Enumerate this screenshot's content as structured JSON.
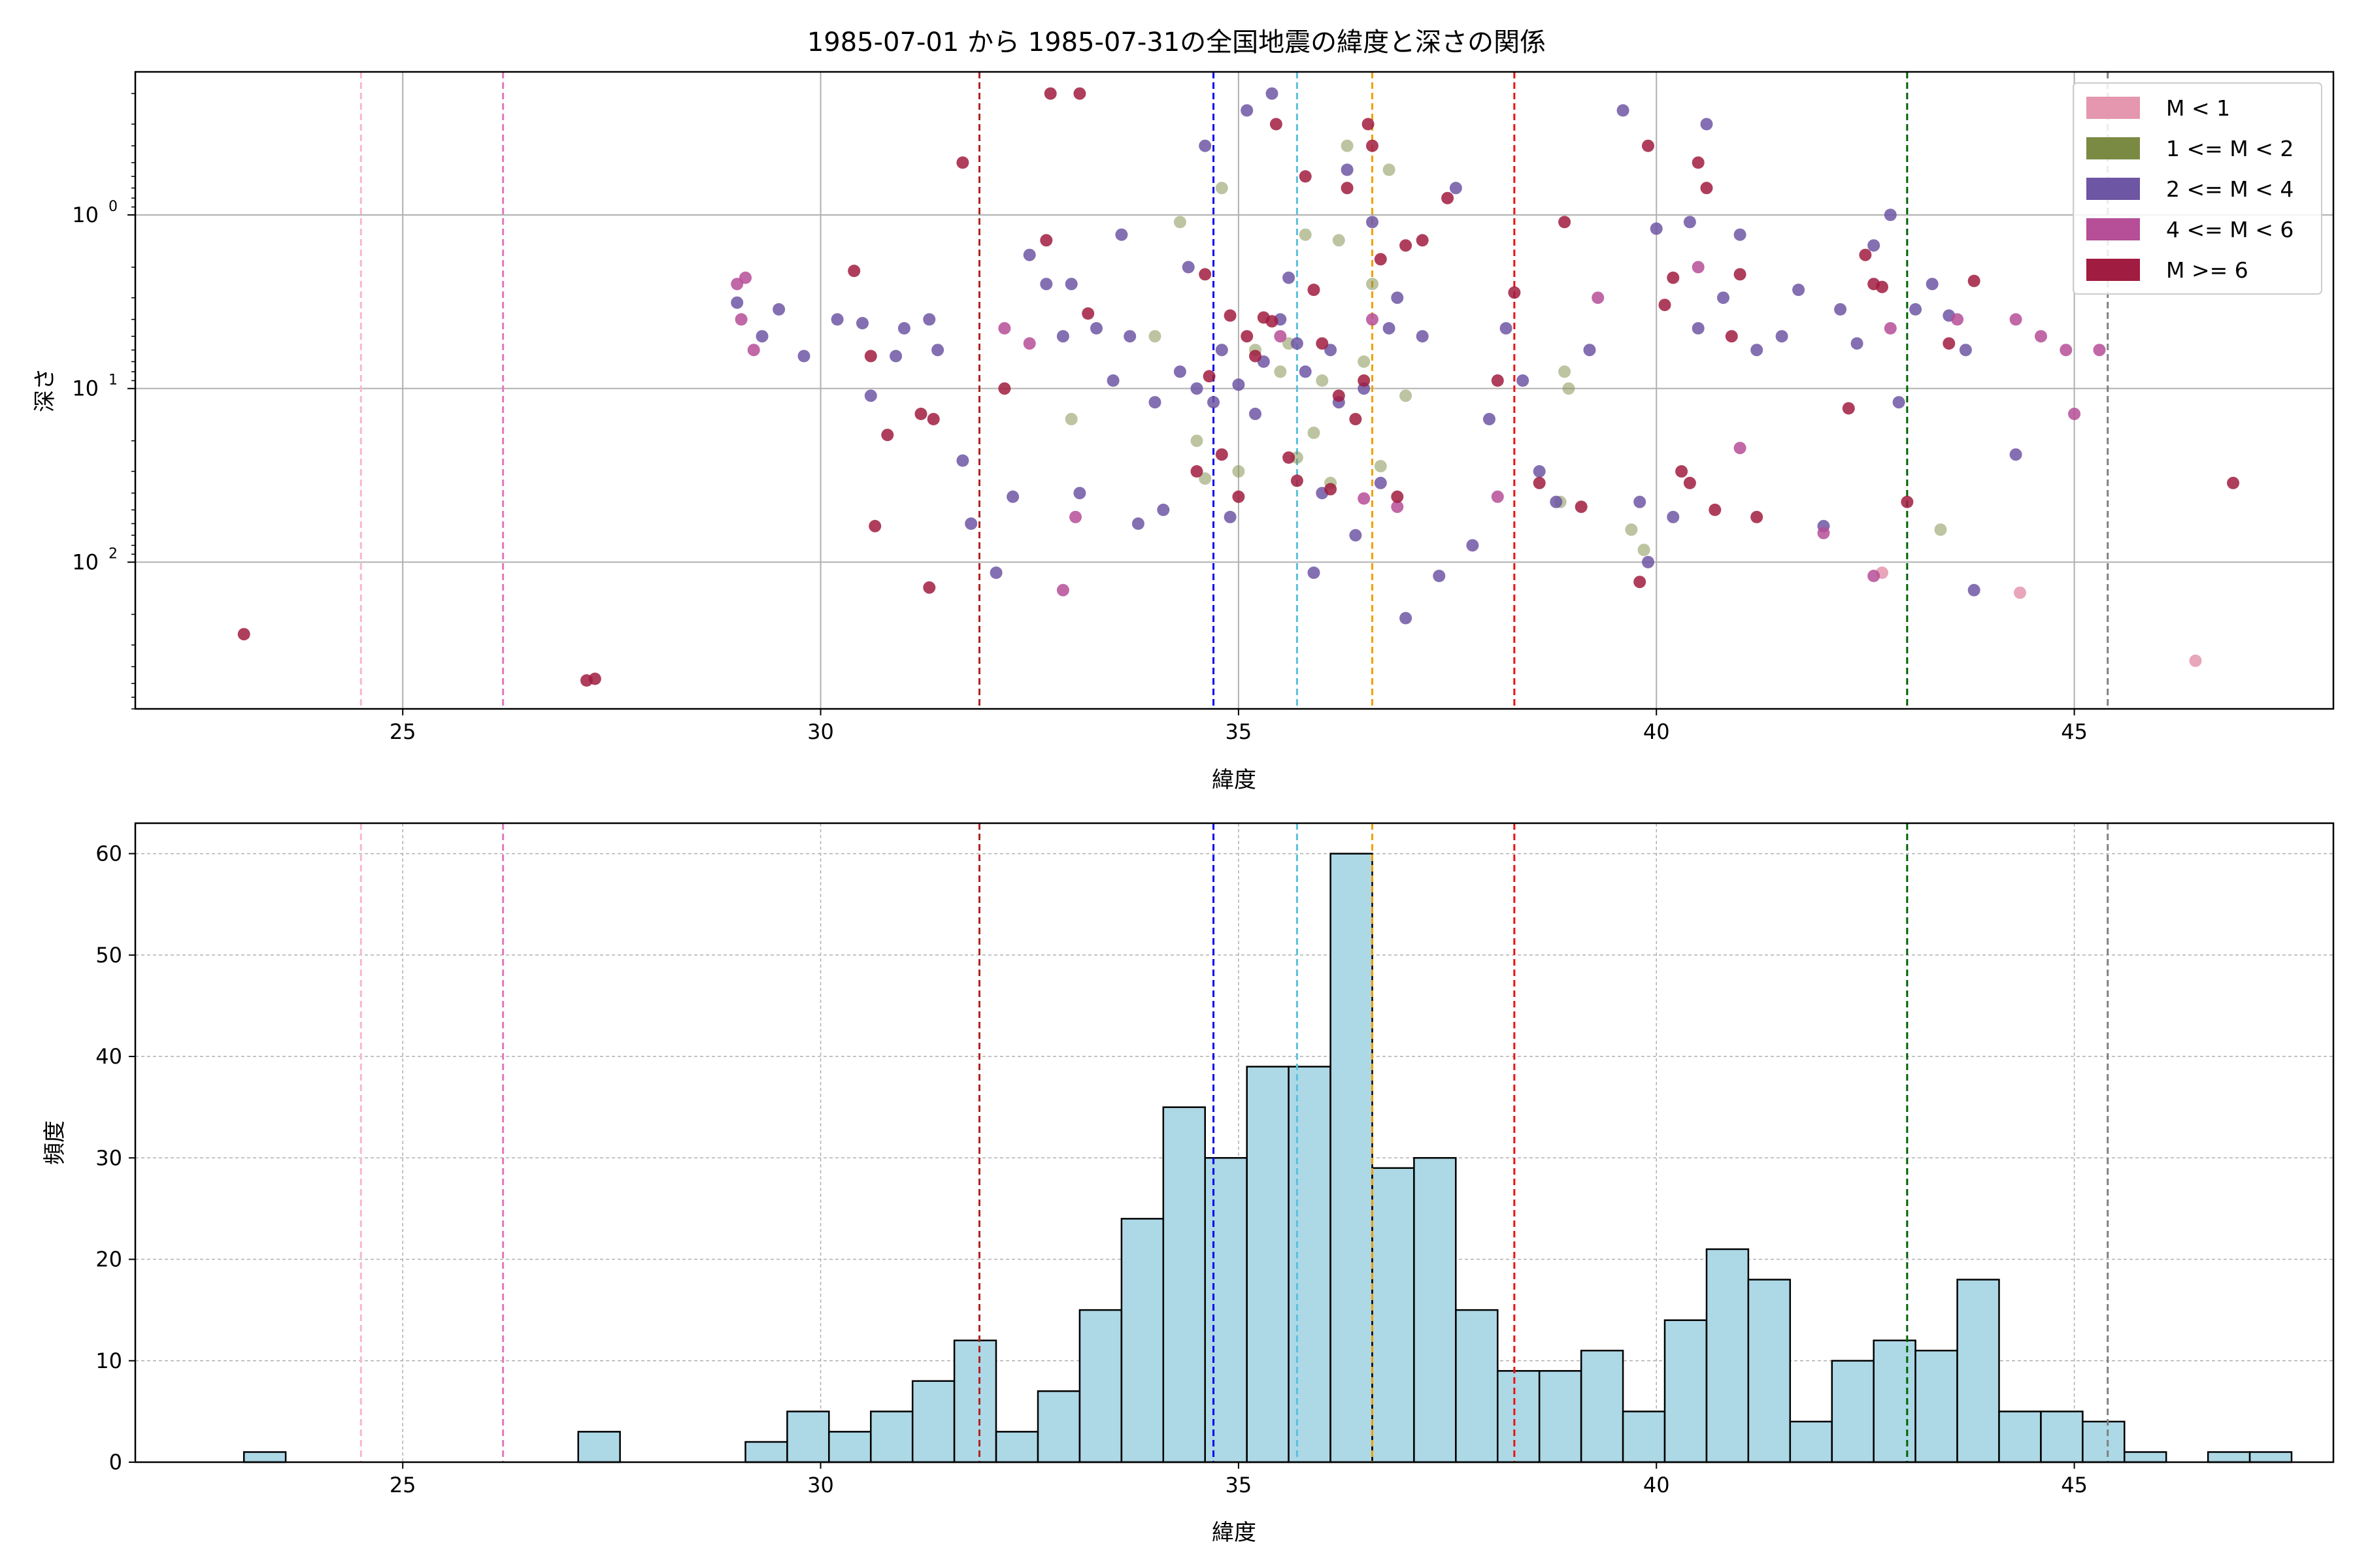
{
  "title": "1985-07-01 から 1985-07-31の全国地震の緯度と深さの関係",
  "chart_data": [
    {
      "type": "scatter",
      "xlabel": "緯度",
      "ylabel": "深さ",
      "xlim": [
        21.8,
        48.1
      ],
      "ylim": [
        700,
        0.15
      ],
      "yscale": "log",
      "inverted_y": true,
      "grid": true,
      "x_ticks": [
        "25",
        "30",
        "35",
        "40",
        "45"
      ],
      "y_ticks": [
        "10^0",
        "10^1",
        "10^2"
      ],
      "legend_position": "top-right",
      "series": [
        {
          "name": "M < 1",
          "color": "#e497ae",
          "points": [
            [
              46.45,
              370
            ],
            [
              44.35,
              150
            ],
            [
              42.7,
              115
            ]
          ]
        },
        {
          "name": "1 <= M < 2",
          "color": "#7b8a43",
          "points": [
            [
              33.0,
              15
            ],
            [
              34.0,
              5
            ],
            [
              34.3,
              1.1
            ],
            [
              34.5,
              20
            ],
            [
              34.6,
              33
            ],
            [
              34.8,
              0.7
            ],
            [
              35.0,
              30
            ],
            [
              35.2,
              6
            ],
            [
              35.5,
              8
            ],
            [
              35.6,
              5.5
            ],
            [
              35.7,
              25
            ],
            [
              35.8,
              1.3
            ],
            [
              35.9,
              18
            ],
            [
              36.0,
              9
            ],
            [
              36.1,
              35
            ],
            [
              36.2,
              1.4
            ],
            [
              36.3,
              0.4
            ],
            [
              36.5,
              7
            ],
            [
              36.6,
              2.5
            ],
            [
              36.7,
              28
            ],
            [
              36.8,
              0.55
            ],
            [
              37.0,
              11
            ],
            [
              38.85,
              45
            ],
            [
              38.9,
              8
            ],
            [
              38.95,
              10
            ],
            [
              39.7,
              65
            ],
            [
              39.85,
              85
            ],
            [
              43.4,
              65
            ]
          ]
        },
        {
          "name": "2 <= M < 4",
          "color": "#6d56a3",
          "points": [
            [
              29.0,
              3.2
            ],
            [
              29.3,
              5
            ],
            [
              29.5,
              3.5
            ],
            [
              29.8,
              6.5
            ],
            [
              30.2,
              4
            ],
            [
              30.5,
              4.2
            ],
            [
              30.6,
              11
            ],
            [
              30.9,
              6.5
            ],
            [
              31.0,
              4.5
            ],
            [
              31.3,
              4
            ],
            [
              31.4,
              6
            ],
            [
              31.7,
              26
            ],
            [
              31.8,
              60
            ],
            [
              32.1,
              115
            ],
            [
              32.3,
              42
            ],
            [
              32.5,
              1.7
            ],
            [
              32.7,
              2.5
            ],
            [
              32.9,
              5
            ],
            [
              33.0,
              2.5
            ],
            [
              33.1,
              40
            ],
            [
              33.3,
              4.5
            ],
            [
              33.5,
              9
            ],
            [
              33.6,
              1.3
            ],
            [
              33.7,
              5
            ],
            [
              33.8,
              60
            ],
            [
              34.0,
              12
            ],
            [
              34.1,
              50
            ],
            [
              34.3,
              8
            ],
            [
              34.4,
              2
            ],
            [
              34.5,
              10
            ],
            [
              34.6,
              0.4
            ],
            [
              34.7,
              12
            ],
            [
              34.8,
              6
            ],
            [
              34.9,
              55
            ],
            [
              35.0,
              9.5
            ],
            [
              35.1,
              0.25
            ],
            [
              35.2,
              14
            ],
            [
              35.3,
              7
            ],
            [
              35.4,
              0.2
            ],
            [
              35.5,
              4
            ],
            [
              35.6,
              2.3
            ],
            [
              35.7,
              5.5
            ],
            [
              35.8,
              8
            ],
            [
              35.9,
              115
            ],
            [
              36.0,
              40
            ],
            [
              36.1,
              6
            ],
            [
              36.2,
              12
            ],
            [
              36.3,
              0.55
            ],
            [
              36.4,
              70
            ],
            [
              36.5,
              10
            ],
            [
              36.6,
              1.1
            ],
            [
              36.7,
              35
            ],
            [
              36.8,
              4.5
            ],
            [
              36.9,
              3
            ],
            [
              37.0,
              210
            ],
            [
              37.2,
              5
            ],
            [
              37.4,
              120
            ],
            [
              37.6,
              0.7
            ],
            [
              37.8,
              80
            ],
            [
              38.0,
              15
            ],
            [
              38.2,
              4.5
            ],
            [
              38.4,
              9
            ],
            [
              38.6,
              30
            ],
            [
              38.8,
              45
            ],
            [
              39.2,
              6
            ],
            [
              39.6,
              0.25
            ],
            [
              39.8,
              45
            ],
            [
              39.9,
              100
            ],
            [
              40.0,
              1.2
            ],
            [
              40.2,
              55
            ],
            [
              40.4,
              1.1
            ],
            [
              40.5,
              4.5
            ],
            [
              40.6,
              0.3
            ],
            [
              40.8,
              3
            ],
            [
              41.0,
              1.3
            ],
            [
              41.2,
              6
            ],
            [
              41.5,
              5
            ],
            [
              41.7,
              2.7
            ],
            [
              42.0,
              62
            ],
            [
              42.2,
              3.5
            ],
            [
              42.4,
              5.5
            ],
            [
              42.6,
              1.5
            ],
            [
              42.8,
              1.0
            ],
            [
              42.9,
              12
            ],
            [
              43.1,
              3.5
            ],
            [
              43.3,
              2.5
            ],
            [
              43.5,
              3.8
            ],
            [
              43.7,
              6
            ],
            [
              43.8,
              145
            ],
            [
              44.3,
              24
            ]
          ]
        },
        {
          "name": "4 <= M < 6",
          "color": "#b64e98",
          "points": [
            [
              29.0,
              2.5
            ],
            [
              29.1,
              2.3
            ],
            [
              29.05,
              4
            ],
            [
              29.2,
              6
            ],
            [
              32.2,
              4.5
            ],
            [
              32.5,
              5.5
            ],
            [
              32.9,
              145
            ],
            [
              33.05,
              55
            ],
            [
              35.5,
              5
            ],
            [
              36.5,
              43
            ],
            [
              36.6,
              4
            ],
            [
              36.9,
              48
            ],
            [
              38.1,
              42
            ],
            [
              39.3,
              3
            ],
            [
              40.5,
              2
            ],
            [
              41.0,
              22
            ],
            [
              42.0,
              68
            ],
            [
              42.6,
              120
            ],
            [
              42.8,
              4.5
            ],
            [
              43.6,
              4
            ],
            [
              44.3,
              4
            ],
            [
              44.6,
              5
            ],
            [
              44.9,
              6
            ],
            [
              45.0,
              14
            ],
            [
              45.3,
              6
            ]
          ]
        },
        {
          "name": "M >= 6",
          "color": "#a01c40",
          "points": [
            [
              23.1,
              260
            ],
            [
              27.2,
              480
            ],
            [
              27.3,
              470
            ],
            [
              30.4,
              2.1
            ],
            [
              30.6,
              6.5
            ],
            [
              30.65,
              62
            ],
            [
              30.8,
              18.5
            ],
            [
              31.2,
              14
            ],
            [
              31.35,
              15
            ],
            [
              31.3,
              140
            ],
            [
              31.7,
              0.5
            ],
            [
              32.2,
              10
            ],
            [
              32.7,
              1.4
            ],
            [
              32.75,
              0.2
            ],
            [
              33.1,
              0.2
            ],
            [
              33.2,
              3.7
            ],
            [
              34.5,
              30
            ],
            [
              34.6,
              2.2
            ],
            [
              34.65,
              8.5
            ],
            [
              34.8,
              24
            ],
            [
              34.9,
              3.8
            ],
            [
              35.0,
              42
            ],
            [
              35.1,
              5
            ],
            [
              35.2,
              6.5
            ],
            [
              35.3,
              3.9
            ],
            [
              35.4,
              4.1
            ],
            [
              35.45,
              0.3
            ],
            [
              35.6,
              25
            ],
            [
              35.7,
              34
            ],
            [
              35.8,
              0.6
            ],
            [
              35.9,
              2.7
            ],
            [
              36.0,
              5.5
            ],
            [
              36.1,
              38
            ],
            [
              36.2,
              11
            ],
            [
              36.3,
              0.7
            ],
            [
              36.4,
              15
            ],
            [
              36.5,
              9
            ],
            [
              36.55,
              0.3
            ],
            [
              36.6,
              0.4
            ],
            [
              36.7,
              1.8
            ],
            [
              36.9,
              42
            ],
            [
              37.0,
              1.5
            ],
            [
              37.2,
              1.4
            ],
            [
              37.5,
              0.8
            ],
            [
              38.1,
              9
            ],
            [
              38.3,
              2.8
            ],
            [
              38.6,
              35
            ],
            [
              38.9,
              1.1
            ],
            [
              39.1,
              48
            ],
            [
              39.8,
              130
            ],
            [
              39.9,
              0.4
            ],
            [
              40.1,
              3.3
            ],
            [
              40.2,
              2.3
            ],
            [
              40.3,
              30
            ],
            [
              40.4,
              35
            ],
            [
              40.5,
              0.5
            ],
            [
              40.6,
              0.7
            ],
            [
              40.7,
              50
            ],
            [
              40.9,
              5
            ],
            [
              41.0,
              2.2
            ],
            [
              41.2,
              55
            ],
            [
              42.3,
              13
            ],
            [
              42.5,
              1.7
            ],
            [
              42.6,
              2.5
            ],
            [
              42.7,
              2.6
            ],
            [
              43.0,
              45
            ],
            [
              43.5,
              5.5
            ],
            [
              43.8,
              2.4
            ],
            [
              46.9,
              35
            ]
          ]
        }
      ],
      "vlines": [
        {
          "x": 24.5,
          "color": "#f7b6d2"
        },
        {
          "x": 26.2,
          "color": "#e377c2"
        },
        {
          "x": 31.9,
          "color": "#b22222"
        },
        {
          "x": 34.7,
          "color": "#0000ee"
        },
        {
          "x": 35.7,
          "color": "#5bc0de"
        },
        {
          "x": 36.6,
          "color": "#f0a000"
        },
        {
          "x": 38.3,
          "color": "#ee1111"
        },
        {
          "x": 43.0,
          "color": "#006400"
        },
        {
          "x": 45.4,
          "color": "#808080"
        }
      ]
    },
    {
      "type": "bar",
      "xlabel": "緯度",
      "ylabel": "頻度",
      "xlim": [
        21.8,
        48.1
      ],
      "ylim": [
        0,
        63
      ],
      "grid": true,
      "x_ticks": [
        "25",
        "30",
        "35",
        "40",
        "45"
      ],
      "y_ticks": [
        "0",
        "10",
        "20",
        "30",
        "40",
        "50",
        "60"
      ],
      "bar_color": "#add8e6",
      "bin_start": 23.1,
      "bin_width": 0.5,
      "values": [
        1,
        0,
        0,
        0,
        0,
        0,
        0,
        0,
        3,
        0,
        0,
        0,
        2,
        5,
        3,
        5,
        8,
        12,
        3,
        7,
        15,
        24,
        35,
        30,
        39,
        39,
        60,
        29,
        30,
        15,
        9,
        9,
        11,
        5,
        14,
        21,
        18,
        4,
        10,
        12,
        11,
        18,
        5,
        5,
        4,
        1,
        0,
        1,
        1
      ],
      "vlines": [
        {
          "x": 24.5,
          "color": "#f7b6d2"
        },
        {
          "x": 26.2,
          "color": "#e377c2"
        },
        {
          "x": 31.9,
          "color": "#b22222"
        },
        {
          "x": 34.7,
          "color": "#0000ee"
        },
        {
          "x": 35.7,
          "color": "#5bc0de"
        },
        {
          "x": 36.6,
          "color": "#f0a000"
        },
        {
          "x": 38.3,
          "color": "#ee1111"
        },
        {
          "x": 43.0,
          "color": "#006400"
        },
        {
          "x": 45.4,
          "color": "#808080"
        }
      ]
    }
  ]
}
